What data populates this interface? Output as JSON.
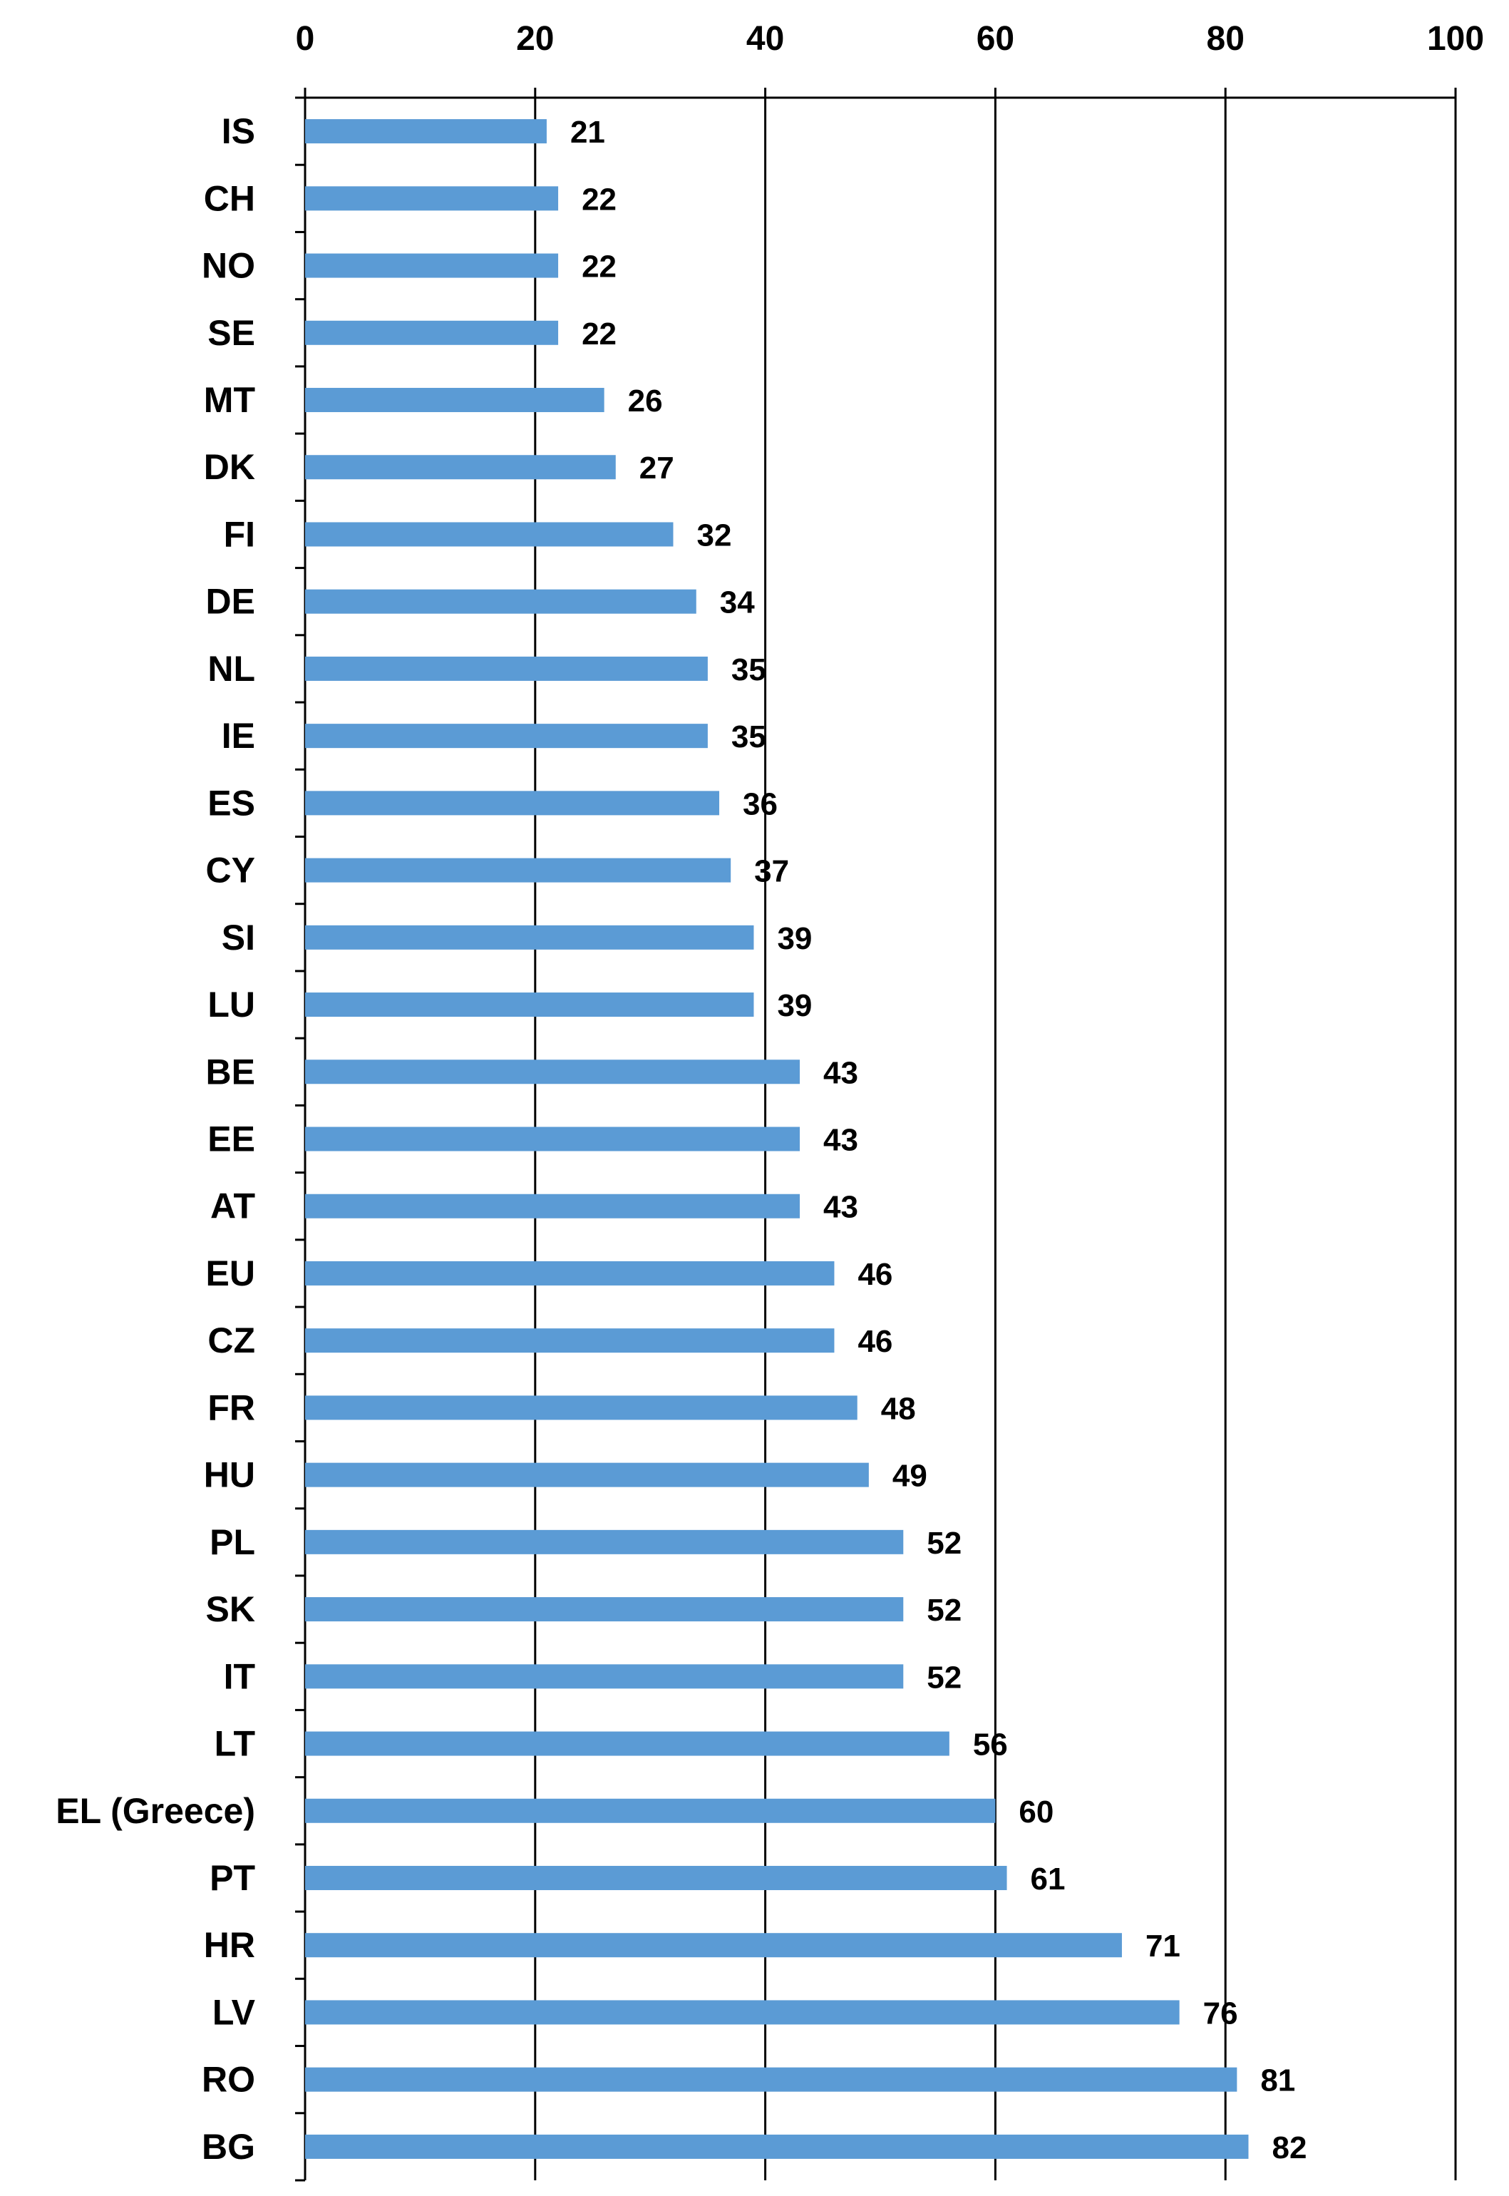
{
  "chart_data": {
    "type": "bar",
    "orientation": "horizontal",
    "title": "",
    "xlabel": "",
    "ylabel": "",
    "xlim": [
      0,
      100
    ],
    "x_ticks": [
      "0",
      "20",
      "40",
      "60",
      "80",
      "100"
    ],
    "grid": "vertical major gridlines",
    "axis_position": "top",
    "bar_color": "#5B9BD5",
    "data_labels": true,
    "categories": [
      "IS",
      "CH",
      "NO",
      "SE",
      "MT",
      "DK",
      "FI",
      "DE",
      "NL",
      "IE",
      "ES",
      "CY",
      "SI",
      "LU",
      "BE",
      "EE",
      "AT",
      "EU",
      "CZ",
      "FR",
      "HU",
      "PL",
      "SK",
      "IT",
      "LT",
      "EL (Greece)",
      "PT",
      "HR",
      "LV",
      "RO",
      "BG"
    ],
    "values": [
      21,
      22,
      22,
      22,
      26,
      27,
      32,
      34,
      35,
      35,
      36,
      37,
      39,
      39,
      43,
      43,
      43,
      46,
      46,
      48,
      49,
      52,
      52,
      52,
      56,
      60,
      61,
      71,
      76,
      81,
      82
    ]
  }
}
